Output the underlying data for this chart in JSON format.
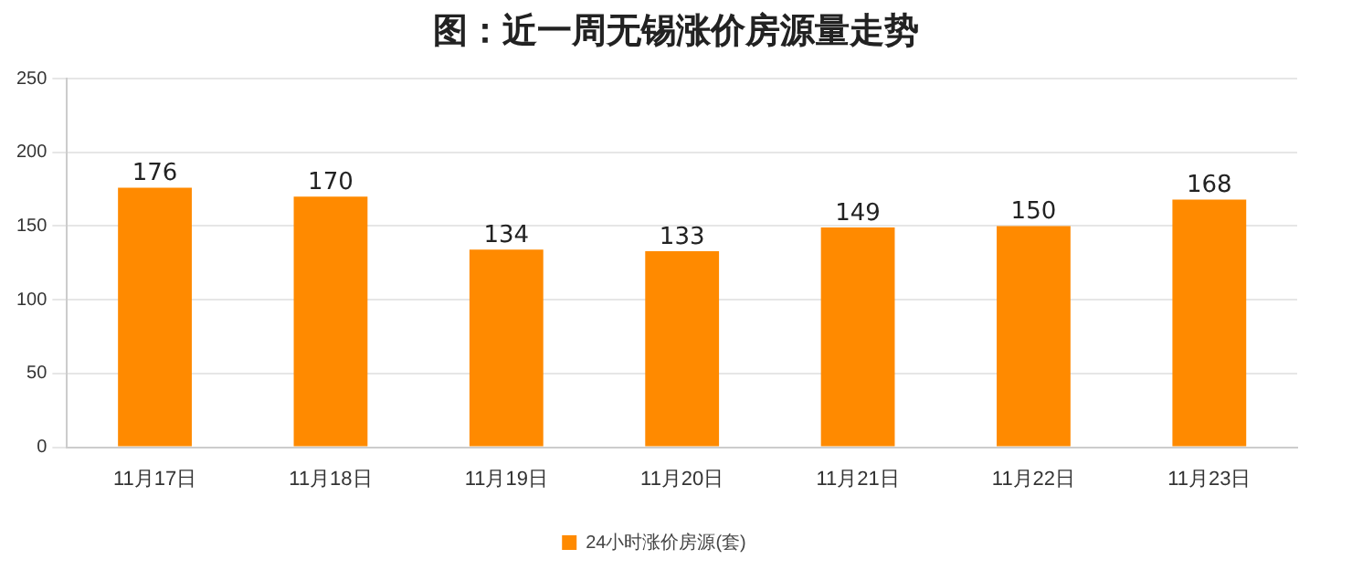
{
  "chart_data": {
    "type": "bar",
    "title": "图：近一周无锡涨价房源量走势",
    "categories": [
      "11月17日",
      "11月18日",
      "11月19日",
      "11月20日",
      "11月21日",
      "11月22日",
      "11月23日"
    ],
    "series": [
      {
        "name": "24小时涨价房源(套)",
        "color": "#ff8a00",
        "values": [
          176,
          170,
          134,
          133,
          149,
          150,
          168
        ]
      }
    ],
    "ylim": [
      0,
      250
    ],
    "yticks": [
      0,
      50,
      100,
      150,
      200,
      250
    ],
    "grid": "y",
    "legend": "bottom",
    "data_labels": true
  }
}
